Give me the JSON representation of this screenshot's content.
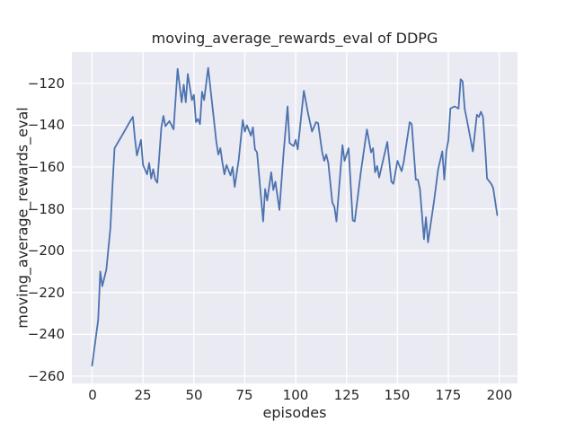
{
  "colors": {
    "figure_background": "#ffffff",
    "panel_background": "#eaeaf2",
    "grid": "#ffffff",
    "line": "#4c72b0",
    "text": "#262626"
  },
  "chart_data": {
    "type": "line",
    "title": "moving_average_rewards_eval of DDPG",
    "xlabel": "episodes",
    "ylabel": "moving_average_rewards_eval",
    "xlim": [
      -9.95,
      208.95
    ],
    "ylim": [
      -263.5,
      -105.0
    ],
    "xticks": [
      0,
      25,
      50,
      75,
      100,
      125,
      150,
      175,
      200
    ],
    "yticks": [
      -120,
      -140,
      -160,
      -180,
      -200,
      -220,
      -240,
      -260
    ],
    "grid": true,
    "legend": false,
    "background": "#eaeaf2",
    "grid_color": "#ffffff",
    "line_color": "#4c72b0",
    "line_width": 1.8,
    "series": [
      {
        "name": "moving_average_rewards_eval",
        "x": [
          0,
          3,
          4,
          5,
          7,
          9,
          10,
          11,
          14,
          19,
          20,
          21,
          22,
          24,
          25,
          27,
          28,
          29,
          30,
          31,
          32,
          34,
          35,
          36,
          38,
          40,
          42,
          44,
          45,
          46,
          47,
          49,
          50,
          51,
          52,
          53,
          54,
          55,
          57,
          59,
          61,
          62,
          63,
          64,
          65,
          66,
          68,
          69,
          70,
          72,
          74,
          75,
          76,
          78,
          79,
          80,
          81,
          84,
          85,
          86,
          88,
          89,
          90,
          92,
          94,
          96,
          97,
          99,
          100,
          101,
          104,
          106,
          108,
          110,
          111,
          113,
          114,
          115,
          116,
          118,
          119,
          120,
          123,
          124,
          126,
          128,
          129,
          132,
          135,
          137,
          138,
          139,
          140,
          141,
          145,
          147,
          148,
          150,
          152,
          153,
          156,
          157,
          159,
          160,
          161,
          163,
          164,
          165,
          168,
          170,
          172,
          173,
          174,
          175,
          176,
          178,
          180,
          181,
          182,
          183,
          184,
          187,
          189,
          190,
          191,
          192,
          193,
          194,
          196,
          197,
          199
        ],
        "y": [
          -255,
          -233,
          -210,
          -217,
          -209,
          -189,
          -169,
          -151,
          -146,
          -137.5,
          -136,
          -146,
          -154.5,
          -147,
          -159,
          -163.5,
          -158,
          -165.5,
          -161,
          -166,
          -167.5,
          -141,
          -135.5,
          -140.5,
          -138,
          -142,
          -113,
          -129,
          -120.5,
          -129,
          -115.5,
          -128,
          -125.5,
          -138.5,
          -137,
          -139.5,
          -124,
          -128,
          -112.5,
          -130,
          -148,
          -154,
          -151,
          -158,
          -163.5,
          -159,
          -164,
          -160,
          -169.5,
          -156.5,
          -137.5,
          -143,
          -140,
          -145,
          -141,
          -151.5,
          -153,
          -186,
          -170.5,
          -176,
          -162.5,
          -171,
          -167,
          -180.5,
          -154,
          -131,
          -148.5,
          -150,
          -147,
          -151.5,
          -123.5,
          -134,
          -143,
          -138.5,
          -139,
          -153,
          -157,
          -154,
          -158,
          -177,
          -179,
          -186,
          -149.5,
          -157,
          -151,
          -185.5,
          -186,
          -162.5,
          -142,
          -153,
          -151,
          -162.5,
          -159.5,
          -165,
          -148,
          -167,
          -168,
          -157,
          -162,
          -158,
          -138.5,
          -139.5,
          -166,
          -166,
          -170.5,
          -194.5,
          -184,
          -196,
          -176,
          -161,
          -152.5,
          -166,
          -152.5,
          -147,
          -132,
          -131,
          -132,
          -118,
          -119,
          -132,
          -137,
          -152.5,
          -135,
          -136,
          -133.5,
          -136,
          -150,
          -165.5,
          -168,
          -170,
          -183
        ]
      }
    ]
  }
}
